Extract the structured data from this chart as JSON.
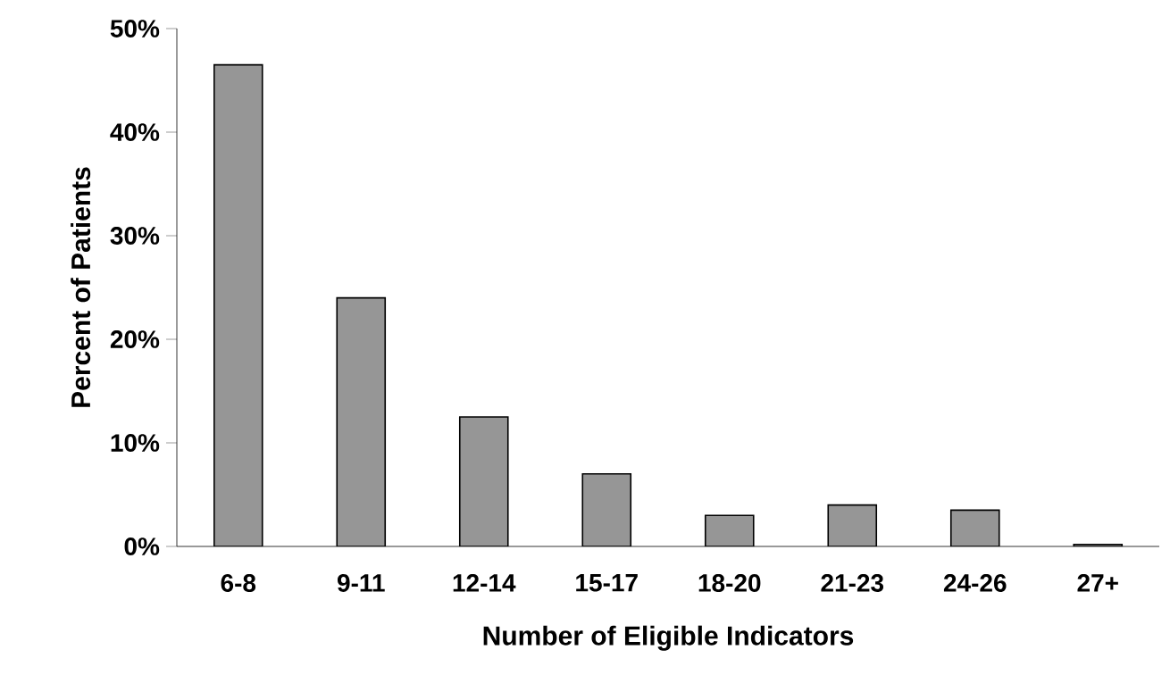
{
  "chart_data": {
    "type": "bar",
    "xlabel": "Number of Eligible Indicators",
    "ylabel": "Percent of Patients",
    "categories": [
      "6-8",
      "9-11",
      "12-14",
      "15-17",
      "18-20",
      "21-23",
      "24-26",
      "27+"
    ],
    "values": [
      46.5,
      24,
      12.5,
      7,
      3,
      4,
      3.5,
      0.2
    ],
    "color": "#969696",
    "ylim": [
      0,
      50
    ],
    "yticks": [
      {
        "value": 0,
        "label": "0%"
      },
      {
        "value": 10,
        "label": "10%"
      },
      {
        "value": 20,
        "label": "20%"
      },
      {
        "value": 30,
        "label": "30%"
      },
      {
        "value": 40,
        "label": "40%"
      },
      {
        "value": 50,
        "label": "50%"
      }
    ],
    "grid": false
  }
}
